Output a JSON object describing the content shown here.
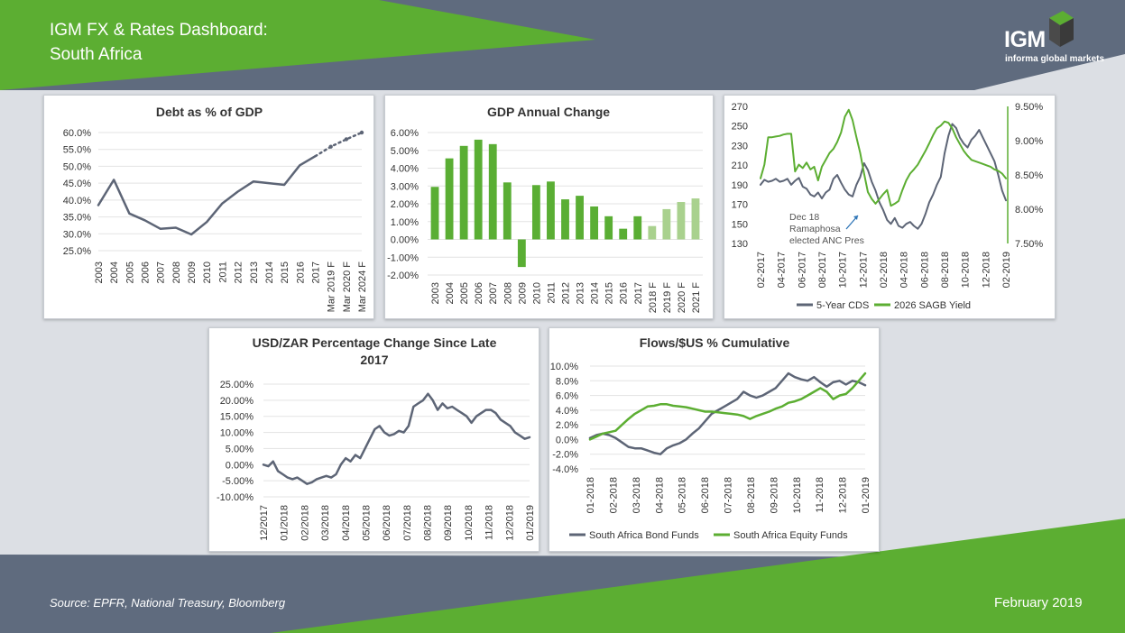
{
  "header": {
    "title_line1": "IGM FX & Rates Dashboard:",
    "title_line2": "South Africa"
  },
  "logo": {
    "text": "IGM",
    "subtitle": "informa global markets",
    "icon": "cube-logo-icon"
  },
  "footer": {
    "source": "Source: EPFR, National Treasury, Bloomberg",
    "date": "February 2019"
  },
  "colors": {
    "dark_slate": "#5f6b7e",
    "green": "#5cae32",
    "light_green": "#a9d18e",
    "bar_green": "#5aae34",
    "gray_line": "#5d6576"
  },
  "chart_data": [
    {
      "id": "debt",
      "type": "line",
      "title": "Debt as % of GDP",
      "categories": [
        "2003",
        "2004",
        "2005",
        "2006",
        "2007",
        "2008",
        "2009",
        "2010",
        "2011",
        "2012",
        "2013",
        "2014",
        "2015",
        "2016",
        "2017",
        "Mar 2019 F",
        "Mar 2020 F",
        "Mar 2024 F"
      ],
      "series": [
        {
          "values": [
            0.385,
            0.46,
            0.36,
            0.34,
            0.315,
            0.318,
            0.298,
            0.335,
            0.39,
            0.425,
            0.455,
            0.45,
            0.445,
            0.503,
            0.53,
            null,
            null,
            null
          ],
          "style": "solid"
        },
        {
          "values": [
            null,
            null,
            null,
            null,
            null,
            null,
            null,
            null,
            null,
            null,
            null,
            null,
            null,
            null,
            0.53,
            0.558,
            0.58,
            0.6
          ],
          "style": "dotted"
        }
      ],
      "ylim": [
        0.25,
        0.6
      ],
      "yticks": [
        "60.0%",
        "55.0%",
        "50.0%",
        "45.0%",
        "40.0%",
        "35.0%",
        "30.0%",
        "25.0%"
      ]
    },
    {
      "id": "gdp",
      "type": "bar",
      "title": "GDP Annual Change",
      "categories": [
        "2003",
        "2004",
        "2005",
        "2006",
        "2007",
        "2008",
        "2009",
        "2010",
        "2011",
        "2012",
        "2013",
        "2014",
        "2015",
        "2016",
        "2017",
        "2018 F",
        "2019 F",
        "2020 F",
        "2021 F"
      ],
      "values": [
        0.0295,
        0.0455,
        0.0525,
        0.056,
        0.0535,
        0.032,
        -0.0155,
        0.0305,
        0.0325,
        0.0225,
        0.0245,
        0.0185,
        0.013,
        0.006,
        0.013,
        0.0075,
        0.017,
        0.021,
        0.023
      ],
      "forecast_from_index": 15,
      "ylim": [
        -0.02,
        0.06
      ],
      "yticks": [
        "6.00%",
        "5.00%",
        "4.00%",
        "3.00%",
        "2.00%",
        "1.00%",
        "0.00%",
        "-1.00%",
        "-2.00%"
      ]
    },
    {
      "id": "cds",
      "type": "line",
      "x_labels": [
        "02-2017",
        "04-2017",
        "06-2017",
        "08-2017",
        "10-2017",
        "12-2017",
        "02-2018",
        "04-2018",
        "06-2018",
        "08-2018",
        "10-2018",
        "12-2018",
        "02-2019"
      ],
      "left_ylim": [
        130,
        270
      ],
      "left_yticks": [
        "270",
        "250",
        "230",
        "210",
        "190",
        "170",
        "150",
        "130"
      ],
      "right_ylim": [
        0.075,
        0.095
      ],
      "right_yticks": [
        "9.50%",
        "9.00%",
        "8.50%",
        "8.00%",
        "7.50%"
      ],
      "series": [
        {
          "name": "5-Year CDS",
          "axis": "left",
          "values": [
            190,
            195,
            193,
            194,
            196,
            193,
            194,
            196,
            190,
            194,
            197,
            188,
            186,
            180,
            178,
            182,
            176,
            182,
            185,
            196,
            200,
            192,
            185,
            180,
            178,
            190,
            198,
            212,
            205,
            193,
            184,
            172,
            164,
            154,
            150,
            156,
            148,
            146,
            150,
            152,
            148,
            145,
            150,
            160,
            172,
            180,
            190,
            198,
            222,
            240,
            252,
            248,
            238,
            232,
            228,
            236,
            240,
            246,
            238,
            230,
            222,
            214,
            200,
            184,
            174
          ]
        },
        {
          "name": "2026 SAGB Yield",
          "axis": "right",
          "values": [
            0.0845,
            0.0865,
            0.0905,
            0.0905,
            0.0906,
            0.0907,
            0.0909,
            0.091,
            0.091,
            0.0855,
            0.0865,
            0.086,
            0.0868,
            0.0858,
            0.0862,
            0.0842,
            0.0862,
            0.0872,
            0.0882,
            0.0888,
            0.0898,
            0.0912,
            0.0935,
            0.0945,
            0.093,
            0.0905,
            0.0882,
            0.0852,
            0.0825,
            0.0815,
            0.0808,
            0.0815,
            0.0822,
            0.0828,
            0.0805,
            0.0808,
            0.0812,
            0.0828,
            0.0842,
            0.0852,
            0.0858,
            0.0865,
            0.0875,
            0.0885,
            0.0896,
            0.0908,
            0.0918,
            0.0922,
            0.0928,
            0.0926,
            0.0918,
            0.0905,
            0.0895,
            0.0885,
            0.0878,
            0.0872,
            0.087,
            0.0868,
            0.0866,
            0.0864,
            0.0862,
            0.0858,
            0.0856,
            0.0852,
            0.0845
          ]
        }
      ],
      "annotation": [
        "Dec 18",
        "Ramaphosa",
        "elected ANC Pres"
      ]
    },
    {
      "id": "usdzar",
      "type": "line",
      "title_lines": [
        "USD/ZAR Percentage Change Since Late",
        "2017"
      ],
      "x_labels": [
        "12/2017",
        "01/2018",
        "02/2018",
        "03/2018",
        "04/2018",
        "05/2018",
        "06/2018",
        "07/2018",
        "08/2018",
        "09/2018",
        "10/2018",
        "11/2018",
        "12/2018",
        "01/2019"
      ],
      "ylim": [
        -0.1,
        0.25
      ],
      "yticks": [
        "25.00%",
        "20.00%",
        "15.00%",
        "10.00%",
        "5.00%",
        "0.00%",
        "-5.00%",
        "-10.00%"
      ],
      "series": [
        {
          "values": [
            0.0,
            -0.005,
            0.01,
            -0.02,
            -0.03,
            -0.04,
            -0.045,
            -0.04,
            -0.05,
            -0.06,
            -0.055,
            -0.045,
            -0.04,
            -0.035,
            -0.04,
            -0.03,
            0.0,
            0.02,
            0.01,
            0.03,
            0.02,
            0.05,
            0.08,
            0.11,
            0.12,
            0.1,
            0.09,
            0.095,
            0.105,
            0.1,
            0.12,
            0.18,
            0.19,
            0.2,
            0.22,
            0.2,
            0.17,
            0.19,
            0.175,
            0.18,
            0.17,
            0.16,
            0.15,
            0.13,
            0.15,
            0.16,
            0.17,
            0.17,
            0.16,
            0.14,
            0.13,
            0.12,
            0.1,
            0.09,
            0.08,
            0.085
          ]
        }
      ]
    },
    {
      "id": "flows",
      "type": "line",
      "title": "Flows/$US % Cumulative",
      "x_labels": [
        "01-2018",
        "02-2018",
        "03-2018",
        "04-2018",
        "05-2018",
        "06-2018",
        "07-2018",
        "08-2018",
        "09-2018",
        "10-2018",
        "11-2018",
        "12-2018",
        "01-2019"
      ],
      "ylim": [
        -0.04,
        0.1
      ],
      "yticks": [
        "10.0%",
        "8.0%",
        "6.0%",
        "4.0%",
        "2.0%",
        "0.0%",
        "-2.0%",
        "-4.0%"
      ],
      "series": [
        {
          "name": "South Africa Bond Funds",
          "values": [
            0.002,
            0.006,
            0.008,
            0.006,
            0.002,
            -0.004,
            -0.01,
            -0.012,
            -0.012,
            -0.015,
            -0.018,
            -0.02,
            -0.012,
            -0.008,
            -0.005,
            0.0,
            0.008,
            0.015,
            0.025,
            0.035,
            0.04,
            0.045,
            0.05,
            0.055,
            0.065,
            0.06,
            0.057,
            0.06,
            0.065,
            0.07,
            0.08,
            0.09,
            0.085,
            0.082,
            0.08,
            0.085,
            0.078,
            0.072,
            0.078,
            0.08,
            0.075,
            0.08,
            0.078,
            0.074
          ]
        },
        {
          "name": "South Africa Equity Funds",
          "values": [
            0.0,
            0.004,
            0.008,
            0.01,
            0.012,
            0.02,
            0.028,
            0.035,
            0.04,
            0.045,
            0.046,
            0.048,
            0.048,
            0.046,
            0.045,
            0.044,
            0.042,
            0.04,
            0.038,
            0.038,
            0.037,
            0.036,
            0.035,
            0.034,
            0.032,
            0.028,
            0.032,
            0.035,
            0.038,
            0.042,
            0.045,
            0.05,
            0.052,
            0.055,
            0.06,
            0.065,
            0.07,
            0.065,
            0.055,
            0.06,
            0.062,
            0.07,
            0.08,
            0.09
          ]
        }
      ]
    }
  ]
}
